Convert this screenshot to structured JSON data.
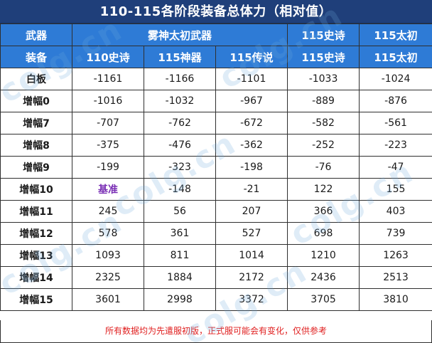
{
  "title": "110-115各阶段装备总体力（相对值）",
  "header": {
    "row1": {
      "label": "武器",
      "group_mist": "雾神太初武器",
      "col_115_epic": "115史诗",
      "col_115_taichu": "115太初"
    },
    "row2": {
      "label": "装备",
      "cols": [
        "110史诗",
        "115神器",
        "115传说",
        "115史诗",
        "115太初"
      ]
    }
  },
  "rows": [
    {
      "label": "白板",
      "values": [
        "-1161",
        "-1166",
        "-1101",
        "-1033",
        "-1024"
      ]
    },
    {
      "label": "增幅0",
      "values": [
        "-1016",
        "-1032",
        "-967",
        "-889",
        "-876"
      ]
    },
    {
      "label": "增幅7",
      "values": [
        "-707",
        "-762",
        "-672",
        "-582",
        "-561"
      ]
    },
    {
      "label": "增幅8",
      "values": [
        "-375",
        "-476",
        "-362",
        "-252",
        "-223"
      ]
    },
    {
      "label": "增幅9",
      "values": [
        "-199",
        "-323",
        "-198",
        "-76",
        "-47"
      ]
    },
    {
      "label": "增幅10",
      "values": [
        "基准",
        "-148",
        "-21",
        "122",
        "155"
      ]
    },
    {
      "label": "增幅11",
      "values": [
        "245",
        "56",
        "207",
        "366",
        "403"
      ]
    },
    {
      "label": "增幅12",
      "values": [
        "578",
        "361",
        "527",
        "698",
        "739"
      ]
    },
    {
      "label": "增幅13",
      "values": [
        "1093",
        "811",
        "1014",
        "1210",
        "1263"
      ]
    },
    {
      "label": "增幅14",
      "values": [
        "2325",
        "1884",
        "2172",
        "2436",
        "2513"
      ]
    },
    {
      "label": "增幅15",
      "values": [
        "3601",
        "2998",
        "3372",
        "3705",
        "3810"
      ]
    }
  ],
  "footnote": "所有数据均为先遣服初版，正式服可能会有变化，仅供参考",
  "watermark": "colg.cn",
  "colors": {
    "title_bg": "#1f3f7a",
    "header_bg": "#2e7bd6",
    "baseline_text": "#7a2fb5",
    "footnote_text": "#e02020"
  }
}
